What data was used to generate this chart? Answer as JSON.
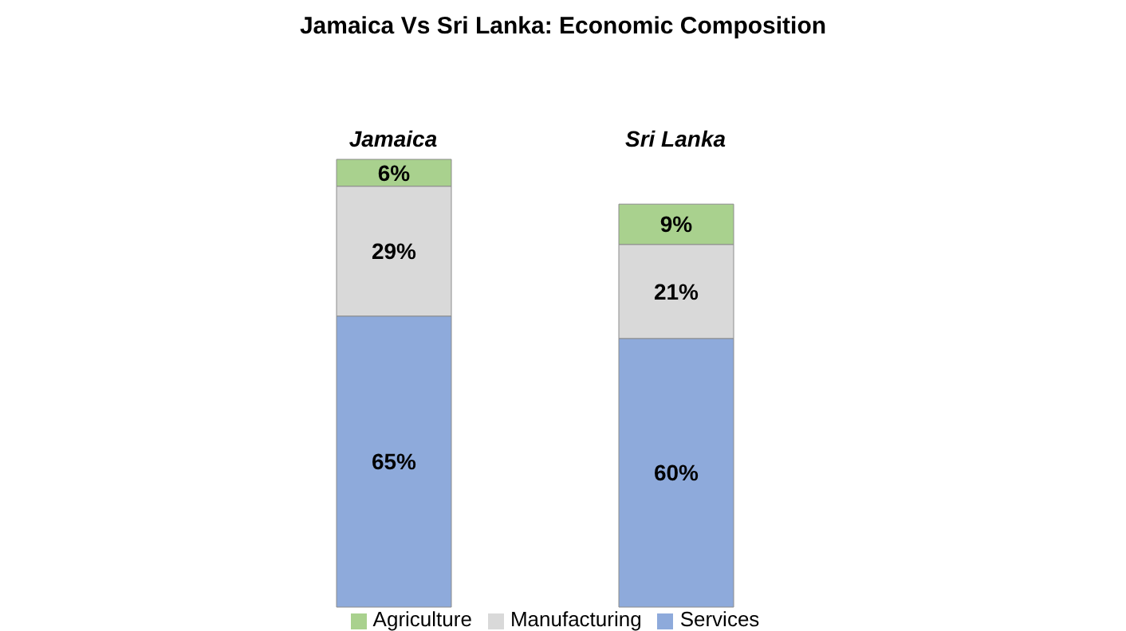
{
  "chart_data": {
    "type": "bar",
    "title": "Jamaica Vs Sri Lanka: Economic Composition",
    "categories": [
      "Jamaica",
      "Sri Lanka"
    ],
    "stacked": true,
    "legend": "bottom",
    "series": [
      {
        "name": "Services",
        "color": "#8eaadb",
        "values": [
          65,
          60
        ],
        "value_labels": [
          "65%",
          "60%"
        ]
      },
      {
        "name": "Manufacturing",
        "color": "#d9d9d9",
        "values": [
          29,
          21
        ],
        "value_labels": [
          "29%",
          "21%"
        ]
      },
      {
        "name": "Agriculture",
        "color": "#a9d18e",
        "values": [
          6,
          9
        ],
        "value_labels": [
          "6%",
          "9%"
        ]
      }
    ]
  }
}
